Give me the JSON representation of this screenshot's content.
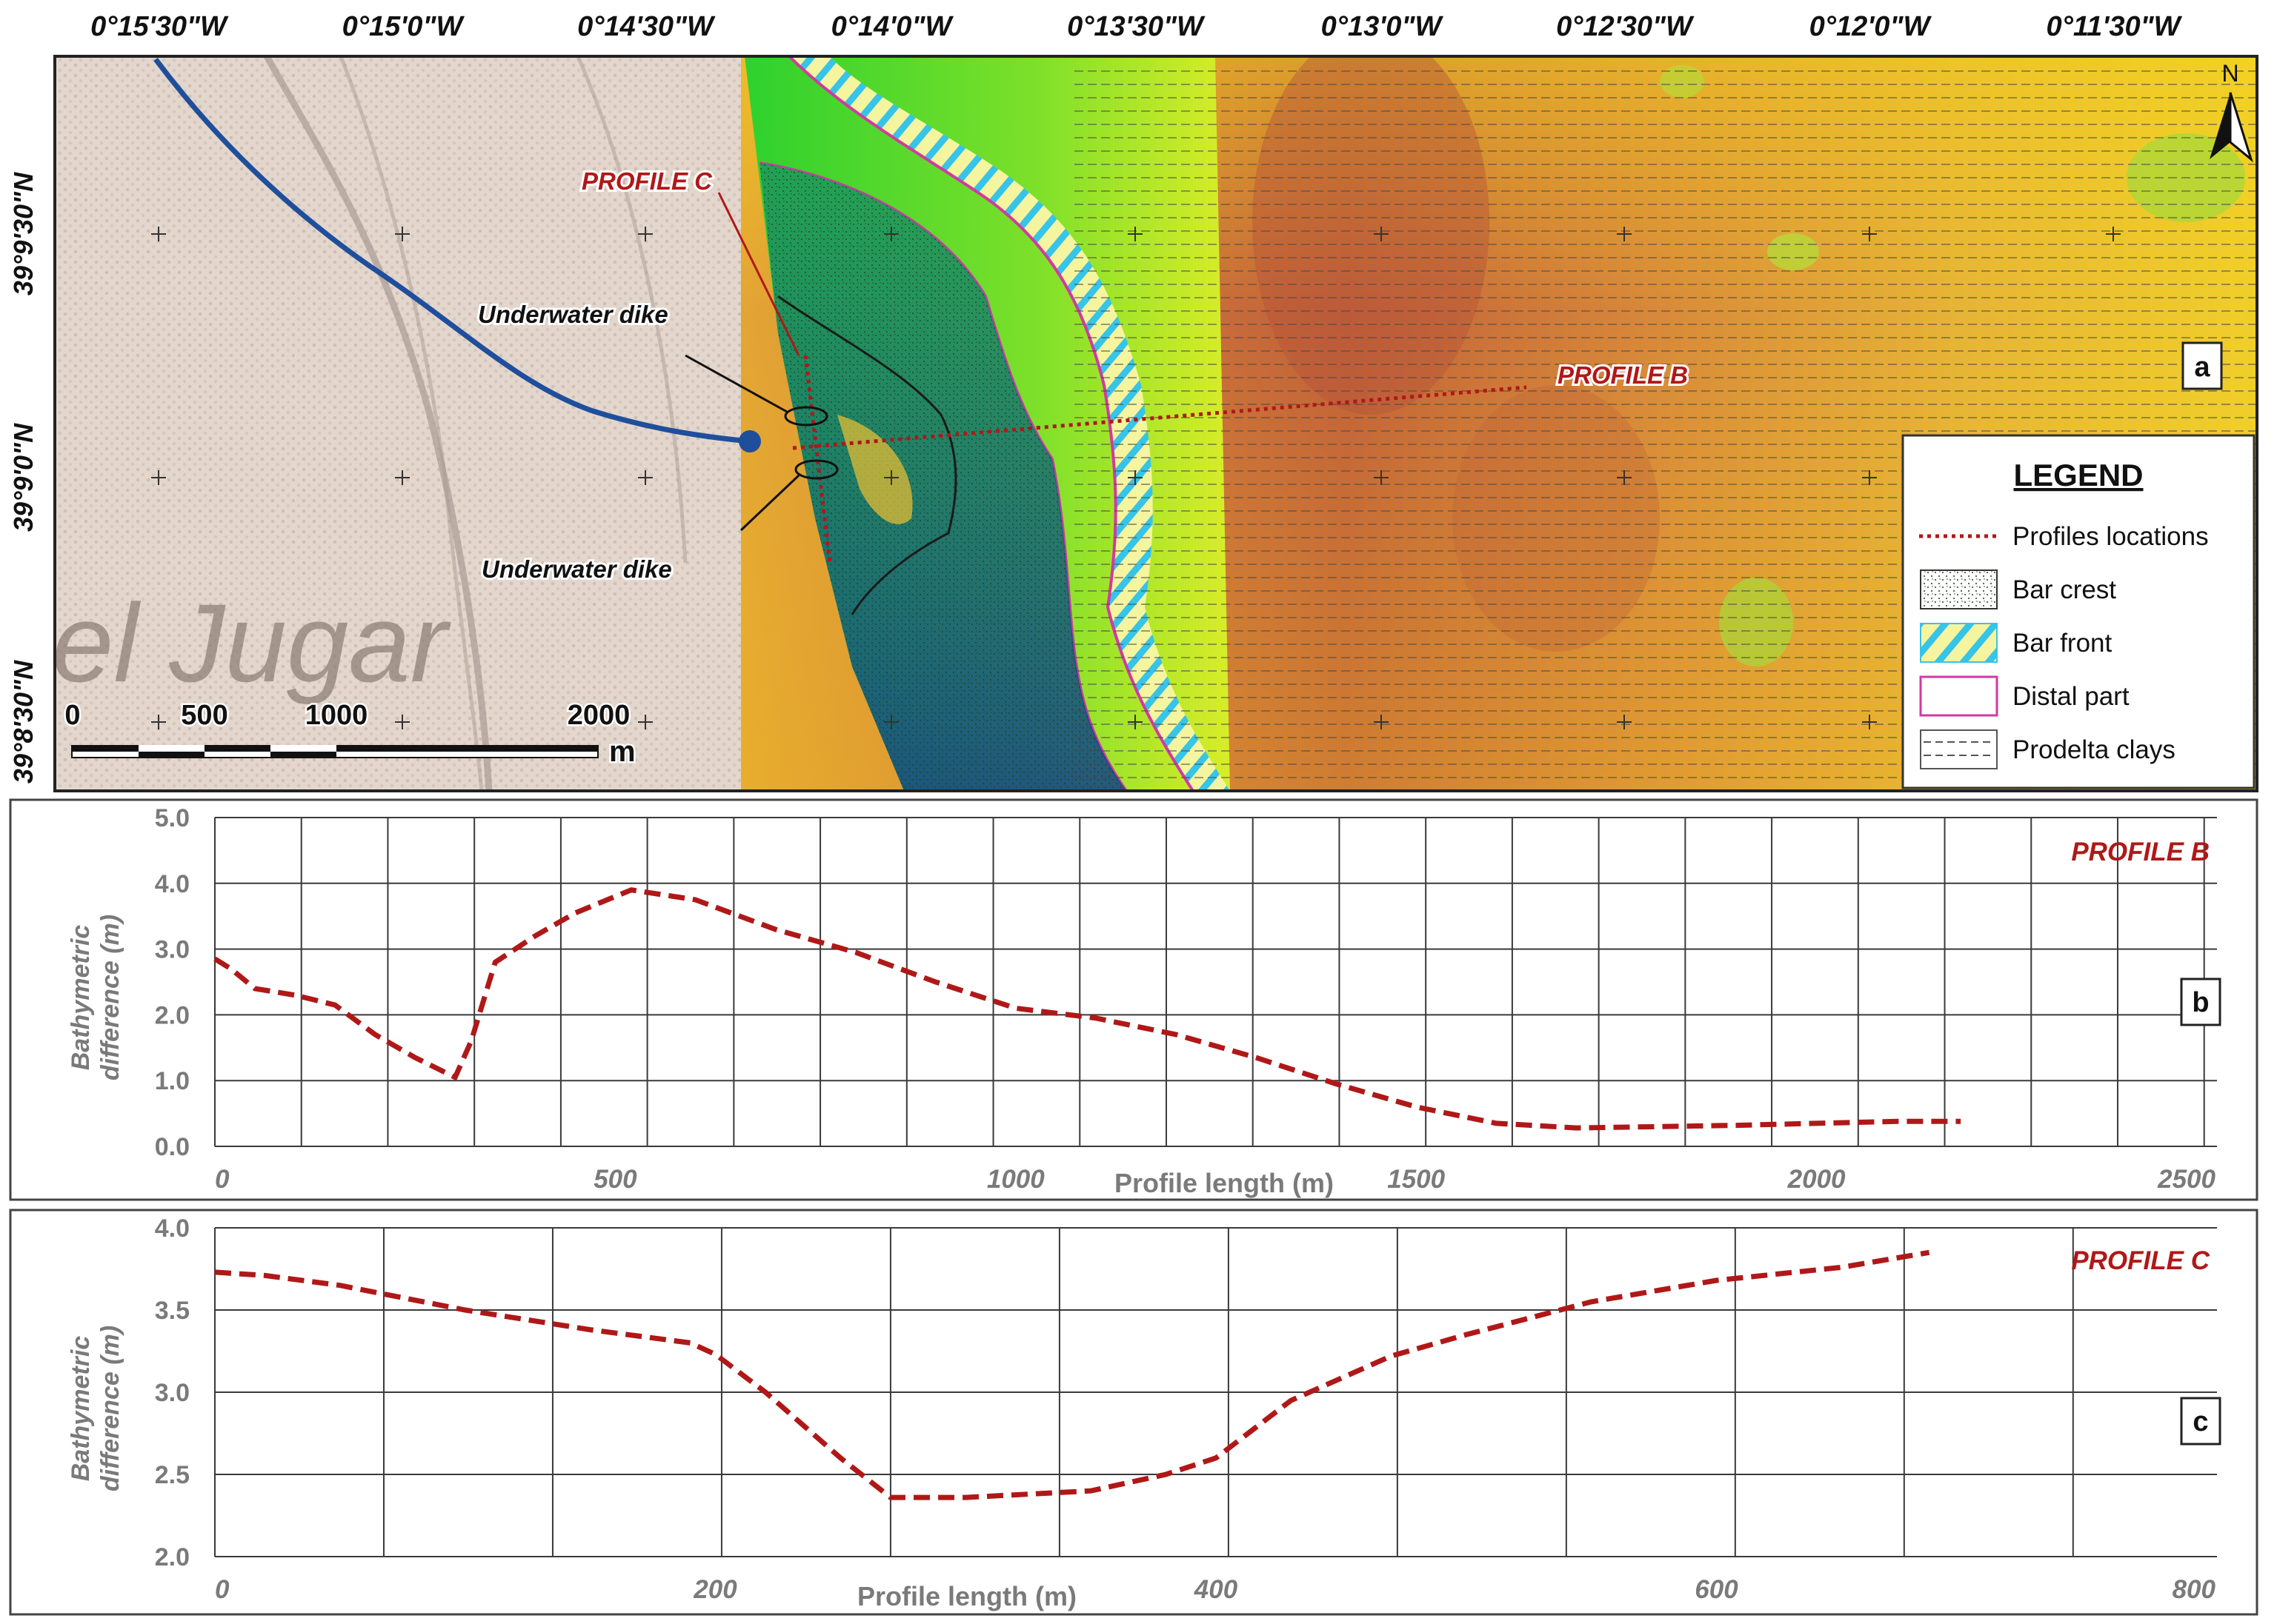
{
  "map": {
    "panel_label": "a",
    "lon_labels": [
      "0°15'30\"W",
      "0°15'0\"W",
      "0°14'30\"W",
      "0°14'0\"W",
      "0°13'30\"W",
      "0°13'0\"W",
      "0°12'30\"W",
      "0°12'0\"W",
      "0°11'30\"W"
    ],
    "lat_labels": [
      "39°9'30\"N",
      "39°9'0\"N",
      "39°8'30\"N"
    ],
    "north_label": "N",
    "profile_c_label": "PROFILE C",
    "profile_b_label": "PROFILE B",
    "dike_label_top": "Underwater dike",
    "dike_label_bottom": "Underwater dike",
    "scale_bar": {
      "ticks": [
        "0",
        "500",
        "1000",
        "2000"
      ],
      "unit": "m"
    },
    "basemap_text": "el Jugar",
    "colors": {
      "profile_line": "#b01818",
      "river": "#1f4e9c",
      "bar_front": "#36c4e8",
      "distal_outline": "#d23aa0"
    }
  },
  "legend": {
    "title": "LEGEND",
    "items": [
      {
        "label": "Profiles locations",
        "symbol": "dotted-red-line"
      },
      {
        "label": "Bar crest",
        "symbol": "stipple-pattern"
      },
      {
        "label": "Bar front",
        "symbol": "cyan-hatch"
      },
      {
        "label": "Distal part",
        "symbol": "magenta-outline"
      },
      {
        "label": "Prodelta clays",
        "symbol": "dashed-lines"
      }
    ]
  },
  "chart_data": [
    {
      "type": "line",
      "panel_label": "b",
      "series_label": "PROFILE B",
      "xlabel": "Profile length (m)",
      "ylabel": [
        "Bathymetric",
        "difference (m)"
      ],
      "xlim": [
        0,
        2500
      ],
      "ylim": [
        0,
        5
      ],
      "x_ticks": [
        0,
        500,
        1000,
        1500,
        2000,
        2500
      ],
      "y_tick_labels": [
        "0.0",
        "1.0",
        "2.0",
        "3.0",
        "4.0",
        "5.0"
      ],
      "color": "#b01818",
      "x": [
        0,
        20,
        50,
        100,
        150,
        200,
        250,
        300,
        320,
        350,
        400,
        450,
        520,
        600,
        700,
        800,
        900,
        1000,
        1100,
        1200,
        1300,
        1400,
        1500,
        1600,
        1700,
        1800,
        1900,
        2000,
        2100,
        2180
      ],
      "y": [
        2.85,
        2.7,
        2.4,
        2.3,
        2.15,
        1.7,
        1.35,
        1.05,
        1.6,
        2.8,
        3.2,
        3.55,
        3.9,
        3.75,
        3.3,
        2.95,
        2.5,
        2.1,
        1.95,
        1.7,
        1.35,
        0.95,
        0.6,
        0.35,
        0.28,
        0.3,
        0.32,
        0.35,
        0.38,
        0.38
      ]
    },
    {
      "type": "line",
      "panel_label": "c",
      "series_label": "PROFILE C",
      "xlabel": "Profile length (m)",
      "ylabel": [
        "Bathymetric",
        "difference (m)"
      ],
      "xlim": [
        0,
        800
      ],
      "ylim": [
        2.0,
        4.0
      ],
      "x_ticks": [
        0,
        200,
        400,
        600,
        800
      ],
      "y_tick_labels": [
        "2.0",
        "2.5",
        "3.0",
        "3.5",
        "4.0"
      ],
      "color": "#b01818",
      "x": [
        0,
        20,
        50,
        100,
        150,
        190,
        200,
        220,
        250,
        270,
        300,
        350,
        380,
        400,
        430,
        470,
        500,
        550,
        600,
        650,
        685
      ],
      "y": [
        3.73,
        3.71,
        3.65,
        3.5,
        3.38,
        3.3,
        3.23,
        3.0,
        2.6,
        2.36,
        2.36,
        2.4,
        2.5,
        2.6,
        2.95,
        3.22,
        3.35,
        3.55,
        3.68,
        3.76,
        3.85
      ]
    }
  ]
}
